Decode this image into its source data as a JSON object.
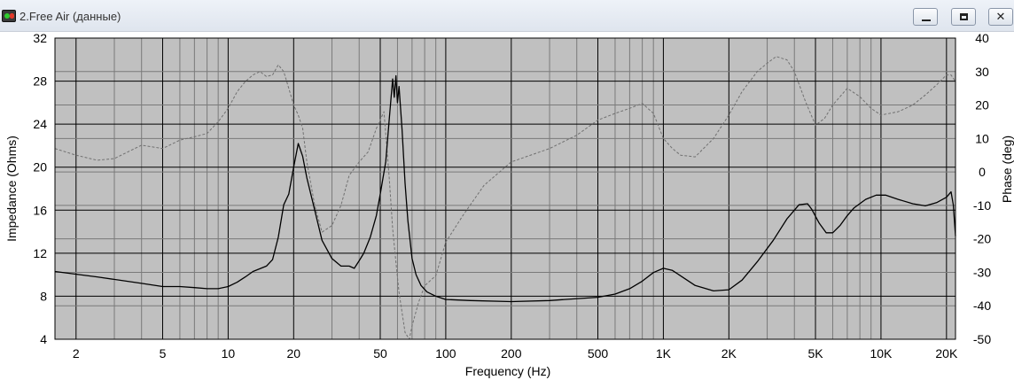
{
  "window": {
    "title": "2.Free Air (данные)",
    "icon": "app-icon",
    "controls": {
      "minimize": "minimize-icon",
      "maximize": "maximize-icon",
      "close": "✕"
    }
  },
  "chart_data": {
    "type": "line",
    "title": "",
    "xlabel": "Frequency (Hz)",
    "ylabel": "Impedance (Ohms)",
    "y2label": "Phase (deg)",
    "xscale": "log",
    "xlim": [
      1.6,
      22000
    ],
    "ylim": [
      4,
      32
    ],
    "y2lim": [
      -50,
      40
    ],
    "grid": true,
    "plot_background": "#c0c0c0",
    "x_ticks": [
      {
        "v": 2,
        "label": "2"
      },
      {
        "v": 5,
        "label": "5"
      },
      {
        "v": 10,
        "label": "10"
      },
      {
        "v": 20,
        "label": "20"
      },
      {
        "v": 50,
        "label": "50"
      },
      {
        "v": 100,
        "label": "100"
      },
      {
        "v": 200,
        "label": "200"
      },
      {
        "v": 500,
        "label": "500"
      },
      {
        "v": 1000,
        "label": "1K"
      },
      {
        "v": 2000,
        "label": "2K"
      },
      {
        "v": 5000,
        "label": "5K"
      },
      {
        "v": 10000,
        "label": "10K"
      },
      {
        "v": 20000,
        "label": "20K"
      }
    ],
    "x_minor_grid": [
      3,
      4,
      6,
      7,
      8,
      9,
      30,
      40,
      60,
      70,
      80,
      90,
      300,
      400,
      600,
      700,
      800,
      900,
      3000,
      4000,
      6000,
      7000,
      8000,
      9000
    ],
    "y_ticks": [
      4,
      8,
      12,
      16,
      20,
      24,
      28,
      32
    ],
    "y2_ticks": [
      -50,
      -40,
      -30,
      -20,
      -10,
      0,
      10,
      20,
      30,
      40
    ],
    "series": [
      {
        "axis": "left",
        "color": "#000000",
        "style": "solid",
        "x": [
          1.6,
          2.5,
          4,
          5,
          6,
          7,
          8,
          9,
          10,
          11,
          12,
          13,
          15,
          16,
          17,
          18,
          19,
          20,
          21,
          22,
          23,
          25,
          27,
          30,
          33,
          36,
          38,
          40,
          42,
          45,
          48,
          50,
          53,
          55,
          57,
          58,
          59,
          60,
          61,
          62,
          63,
          64,
          65,
          67,
          70,
          73,
          77,
          82,
          90,
          100,
          130,
          200,
          300,
          500,
          600,
          700,
          800,
          900,
          1000,
          1100,
          1200,
          1400,
          1700,
          2000,
          2300,
          2700,
          3200,
          3700,
          4200,
          4600,
          4800,
          5200,
          5600,
          6000,
          6500,
          7000,
          7500,
          8500,
          9500,
          10500,
          12000,
          14000,
          16000,
          18000,
          20000,
          21000,
          21500,
          22000
        ],
        "y": [
          10.3,
          9.8,
          9.2,
          8.9,
          8.9,
          8.8,
          8.7,
          8.7,
          8.9,
          9.3,
          9.8,
          10.3,
          10.8,
          11.4,
          13.5,
          16.5,
          17.5,
          20.0,
          22.2,
          21.0,
          19.0,
          16.0,
          13.2,
          11.5,
          10.8,
          10.8,
          10.6,
          11.3,
          12.0,
          13.5,
          15.5,
          17.5,
          20.5,
          24.5,
          28.2,
          26.5,
          28.5,
          26.0,
          27.5,
          25.5,
          23.5,
          21.0,
          18.5,
          15.0,
          11.5,
          10.0,
          9.0,
          8.4,
          8.0,
          7.7,
          7.6,
          7.5,
          7.6,
          7.9,
          8.2,
          8.7,
          9.4,
          10.2,
          10.6,
          10.4,
          9.9,
          9.0,
          8.5,
          8.6,
          9.5,
          11.2,
          13.2,
          15.2,
          16.5,
          16.6,
          16.1,
          14.8,
          13.9,
          13.9,
          14.6,
          15.5,
          16.2,
          17.0,
          17.4,
          17.4,
          17.0,
          16.6,
          16.4,
          16.7,
          17.2,
          17.7,
          16.5,
          13.6
        ]
      },
      {
        "axis": "right",
        "color": "#707070",
        "style": "dashed",
        "x": [
          1.6,
          2,
          2.5,
          3,
          4,
          5,
          6,
          7,
          8,
          9,
          10,
          11,
          12,
          13,
          14,
          15,
          16,
          17,
          18,
          19,
          20,
          21,
          22,
          23,
          25,
          27,
          30,
          33,
          36,
          40,
          44,
          48,
          52,
          55,
          57,
          59,
          61,
          63,
          65,
          68,
          70,
          75,
          80,
          90,
          100,
          120,
          150,
          200,
          300,
          400,
          500,
          600,
          700,
          800,
          900,
          1000,
          1100,
          1200,
          1400,
          1700,
          2000,
          2300,
          2700,
          3000,
          3300,
          3700,
          4000,
          4500,
          5000,
          5500,
          6000,
          7000,
          8000,
          9000,
          10000,
          12000,
          14000,
          16000,
          18000,
          20000,
          21000,
          22000
        ],
        "y": [
          7,
          5,
          3.5,
          4,
          8,
          7,
          9.5,
          10.5,
          11.5,
          15,
          19,
          24,
          27,
          29,
          30,
          28.5,
          29,
          32,
          30,
          25,
          20,
          17,
          13,
          3,
          -10,
          -18,
          -16,
          -10,
          -1,
          3,
          6,
          13,
          18,
          -2,
          -17,
          -27,
          -36,
          -42,
          -48,
          -50,
          -46,
          -39,
          -34,
          -31,
          -21,
          -13,
          -4,
          3,
          7,
          11,
          15.5,
          17.5,
          19,
          20.5,
          17.5,
          10,
          7,
          5,
          4.5,
          10,
          17,
          24,
          30,
          32.5,
          34.5,
          33.5,
          30,
          21,
          14,
          16,
          20,
          25,
          22.5,
          19,
          17,
          18,
          20,
          23,
          26,
          29,
          29,
          27
        ]
      }
    ]
  }
}
